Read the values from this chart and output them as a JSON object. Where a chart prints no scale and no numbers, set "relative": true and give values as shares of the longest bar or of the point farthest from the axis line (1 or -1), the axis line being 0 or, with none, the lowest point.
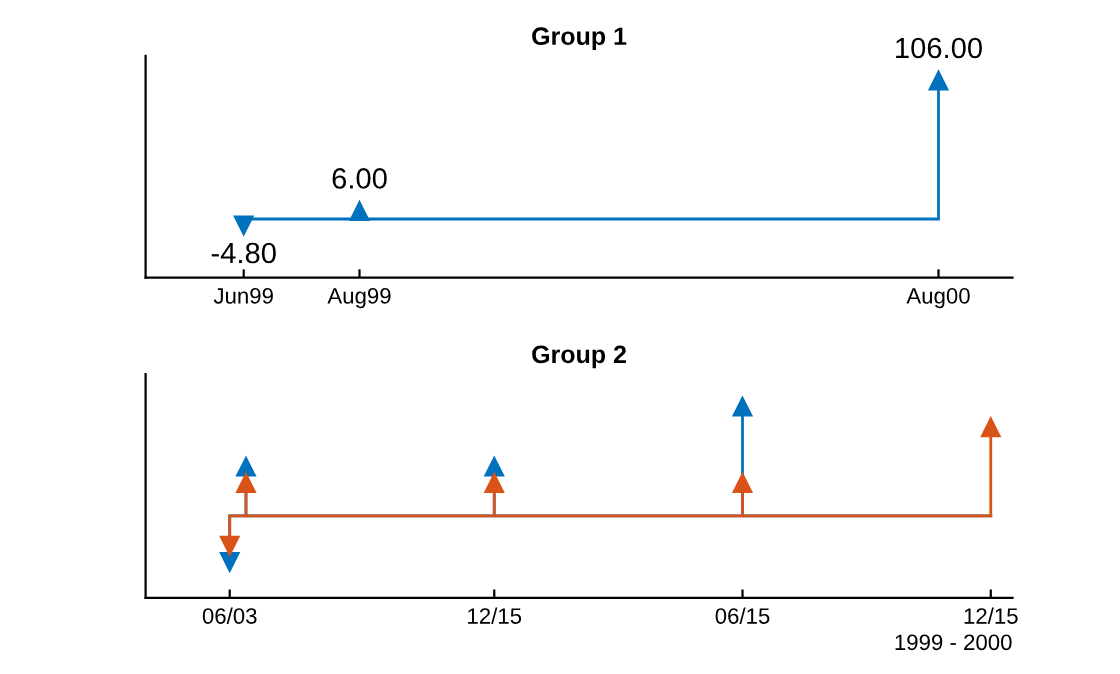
{
  "chart_data": [
    {
      "type": "lollipop",
      "title": "Group 1",
      "marker": "triangle",
      "tick_labels": "x",
      "xlim": [
        "1999-04-10",
        "2000-09-30"
      ],
      "xticks": [
        {
          "value": "1999-06-10",
          "label": "Jun99"
        },
        {
          "value": "1999-08-21",
          "label": "Aug99"
        },
        {
          "value": "2000-08-15",
          "label": "Aug00"
        }
      ],
      "ylim": [
        -45,
        125
      ],
      "ref_lines": [
        {
          "axis": "y",
          "value": 0,
          "color": "#0072bd"
        }
      ],
      "series": [
        {
          "color": "#0072bd",
          "x": [
            "1999-06-10",
            "1999-08-21",
            "2000-08-15"
          ],
          "values": [
            -4.8,
            6,
            106
          ],
          "value_labels": [
            "-4.80",
            "6.00",
            "106.00"
          ]
        }
      ]
    },
    {
      "type": "lollipop",
      "title": "Group 2",
      "xlabel": "1999 - 2000",
      "marker": "triangle",
      "relative": true,
      "tick_labels": "x",
      "xlim": [
        "1999-04-02",
        "2000-12-31"
      ],
      "ref_lines": [
        {
          "axis": "y",
          "value": 0,
          "color": "#0072bd"
        },
        {
          "axis": "y",
          "value": 0,
          "color": "#d95319"
        }
      ],
      "xticks": [
        {
          "value": "1999-06-03",
          "label": "06/03"
        },
        {
          "value": "1999-12-15",
          "label": "12/15"
        },
        {
          "value": "2000-06-15",
          "label": "06/15"
        },
        {
          "value": "2000-12-15",
          "label": "12/15"
        }
      ],
      "series": [
        {
          "color": "#0072bd",
          "x": [
            "1999-06-03",
            "1999-06-15",
            "1999-12-15",
            "2000-06-15"
          ],
          "values": [
            -0.42,
            0.45,
            0.45,
            1.0
          ]
        },
        {
          "color": "#d95319",
          "x": [
            "1999-06-03",
            "1999-06-15",
            "1999-12-15",
            "2000-06-15",
            "2000-12-15"
          ],
          "values": [
            -0.27,
            0.3,
            0.3,
            0.3,
            0.81
          ]
        }
      ]
    }
  ]
}
